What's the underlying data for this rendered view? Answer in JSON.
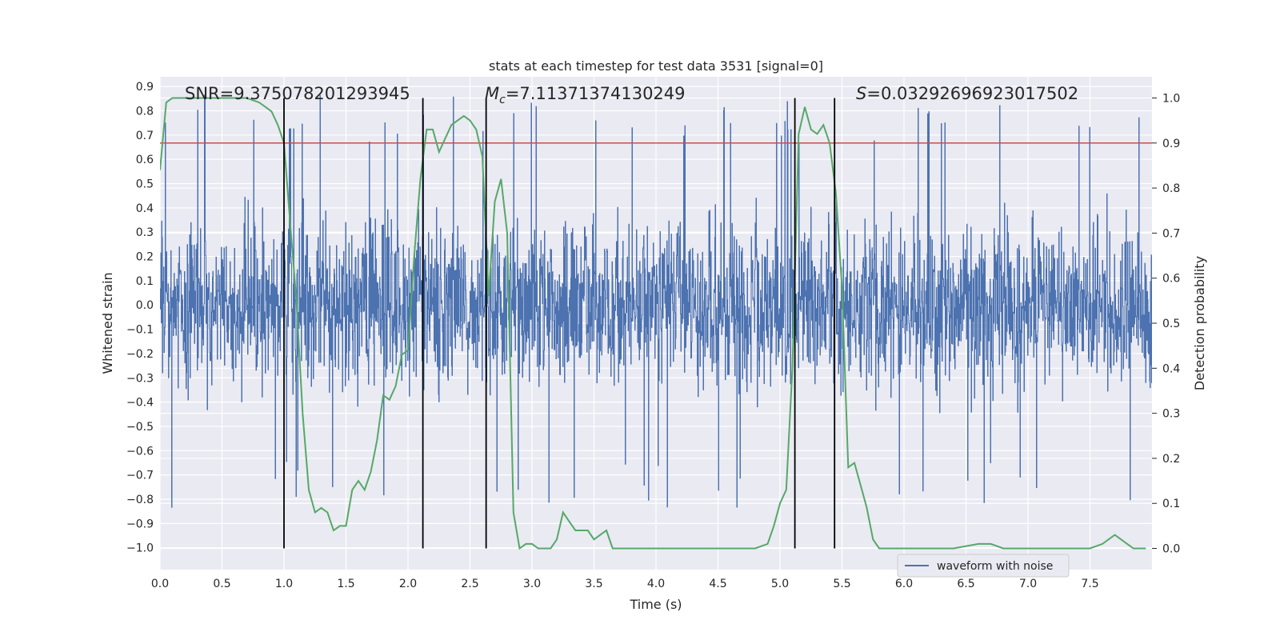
{
  "chart_data": {
    "type": "line",
    "title": "stats at each timestep for test data 3531 [signal=0]",
    "xlabel": "Time (s)",
    "ylabel": "Whitened strain",
    "y2label": "Detection probability",
    "xlim": [
      0.0,
      8.0
    ],
    "ylim": [
      -1.09,
      0.94
    ],
    "y2lim": [
      -0.047,
      1.047
    ],
    "x_ticks": [
      "0.0",
      "0.5",
      "1.0",
      "1.5",
      "2.0",
      "2.5",
      "3.0",
      "3.5",
      "4.0",
      "4.5",
      "5.0",
      "5.5",
      "6.0",
      "6.5",
      "7.0",
      "7.5"
    ],
    "y_ticks": [
      "0.9",
      "0.8",
      "0.7",
      "0.6",
      "0.5",
      "0.4",
      "0.3",
      "0.2",
      "0.1",
      "0.0",
      "−0.1",
      "−0.2",
      "−0.3",
      "−0.4",
      "−0.5",
      "−0.6",
      "−0.7",
      "−0.8",
      "−0.9",
      "−1.0"
    ],
    "y2_ticks": [
      "1.0",
      "0.9",
      "0.8",
      "0.7",
      "0.6",
      "0.5",
      "0.4",
      "0.3",
      "0.2",
      "0.1",
      "0.0"
    ],
    "annotations": {
      "snr": "SNR=9.375078201293945",
      "mc_symbol": "M",
      "mc_sub": "c",
      "mc_value": "=7.11371374130249",
      "s_symbol": "S",
      "s_value": "=0.03292696923017502"
    },
    "threshold": {
      "value": 0.9,
      "axis": "y2",
      "color": "#c44e52"
    },
    "vertical_lines": [
      1.0,
      2.12,
      2.63,
      5.12,
      5.44
    ],
    "legend": {
      "label": "waveform with noise",
      "placement": "lower-center-right"
    },
    "series": [
      {
        "name": "waveform with noise",
        "axis": "y",
        "color": "#4c72b0",
        "typical_range": [
          -0.45,
          0.5
        ],
        "peak_range": [
          -0.85,
          0.88
        ]
      },
      {
        "name": "",
        "axis": "y2",
        "color": "#55a868",
        "x": [
          0.0,
          0.05,
          0.1,
          0.2,
          0.3,
          0.4,
          0.5,
          0.6,
          0.7,
          0.8,
          0.85,
          0.9,
          0.95,
          1.0,
          1.05,
          1.1,
          1.15,
          1.2,
          1.25,
          1.3,
          1.35,
          1.4,
          1.45,
          1.5,
          1.55,
          1.6,
          1.65,
          1.7,
          1.75,
          1.8,
          1.85,
          1.9,
          1.95,
          2.0,
          2.05,
          2.1,
          2.15,
          2.2,
          2.25,
          2.3,
          2.35,
          2.4,
          2.45,
          2.5,
          2.55,
          2.6,
          2.65,
          2.7,
          2.75,
          2.8,
          2.85,
          2.9,
          2.95,
          3.0,
          3.05,
          3.1,
          3.15,
          3.2,
          3.25,
          3.3,
          3.35,
          3.4,
          3.45,
          3.5,
          3.55,
          3.6,
          3.65,
          3.7,
          3.8,
          3.9,
          4.0,
          4.2,
          4.4,
          4.6,
          4.8,
          4.9,
          4.95,
          5.0,
          5.05,
          5.1,
          5.15,
          5.2,
          5.25,
          5.3,
          5.35,
          5.4,
          5.45,
          5.5,
          5.55,
          5.6,
          5.65,
          5.7,
          5.75,
          5.8,
          5.85,
          5.9,
          6.0,
          6.2,
          6.4,
          6.6,
          6.7,
          6.8,
          6.9,
          7.0,
          7.2,
          7.4,
          7.5,
          7.6,
          7.7,
          7.75,
          7.8,
          7.85,
          7.9,
          7.95
        ],
        "values": [
          0.84,
          0.99,
          1.0,
          1.0,
          1.0,
          1.0,
          1.0,
          1.0,
          1.0,
          0.99,
          0.98,
          0.97,
          0.94,
          0.9,
          0.72,
          0.55,
          0.3,
          0.13,
          0.08,
          0.09,
          0.08,
          0.04,
          0.05,
          0.05,
          0.13,
          0.15,
          0.13,
          0.17,
          0.24,
          0.34,
          0.33,
          0.36,
          0.43,
          0.44,
          0.65,
          0.82,
          0.93,
          0.93,
          0.88,
          0.91,
          0.94,
          0.95,
          0.96,
          0.95,
          0.93,
          0.87,
          0.56,
          0.77,
          0.82,
          0.7,
          0.08,
          0.0,
          0.01,
          0.01,
          0.0,
          0.0,
          0.0,
          0.02,
          0.08,
          0.06,
          0.04,
          0.04,
          0.04,
          0.02,
          0.03,
          0.04,
          0.0,
          0.0,
          0.0,
          0.0,
          0.0,
          0.0,
          0.0,
          0.0,
          0.0,
          0.01,
          0.05,
          0.1,
          0.13,
          0.4,
          0.92,
          0.98,
          0.93,
          0.92,
          0.94,
          0.9,
          0.79,
          0.58,
          0.18,
          0.19,
          0.14,
          0.09,
          0.02,
          0.0,
          0.0,
          0.0,
          0.0,
          0.0,
          0.0,
          0.01,
          0.01,
          0.0,
          0.0,
          0.0,
          0.0,
          0.0,
          0.0,
          0.01,
          0.03,
          0.02,
          0.01,
          0.0,
          0.0,
          0.0
        ]
      }
    ]
  }
}
